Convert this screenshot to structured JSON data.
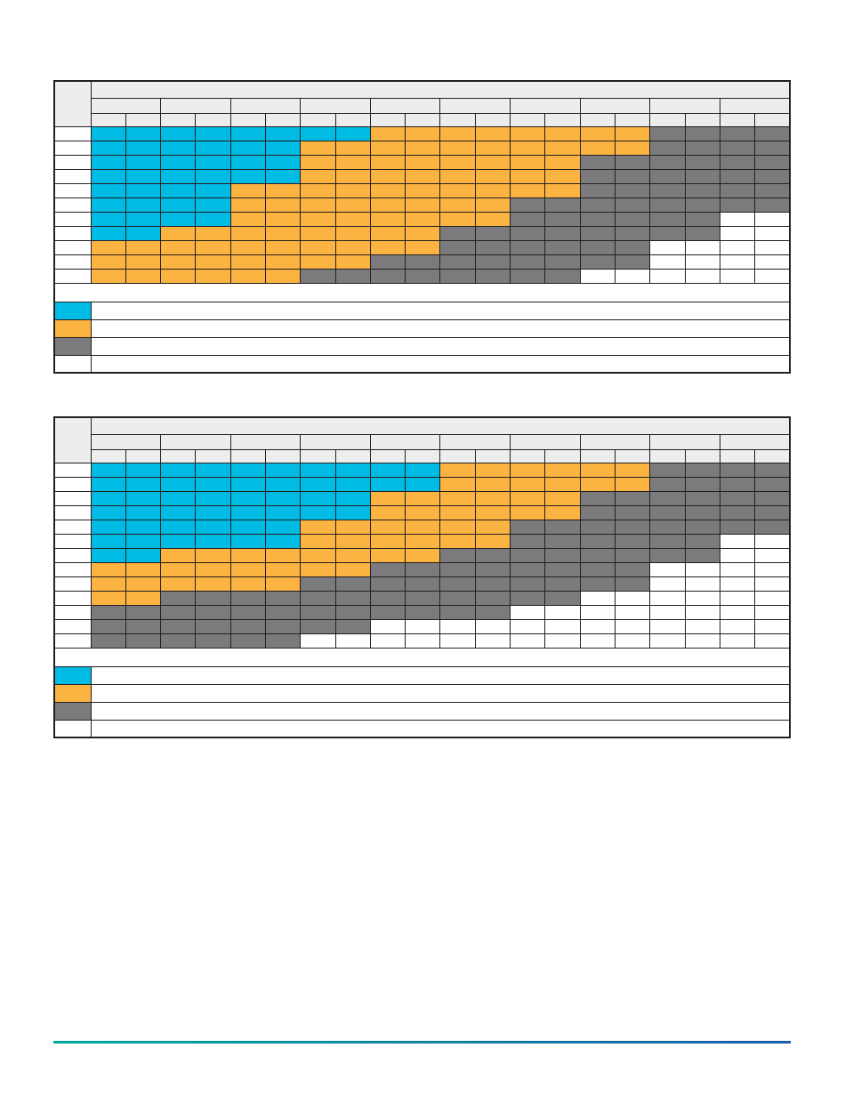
{
  "colors": {
    "cyan": "#00bce4",
    "orange": "#fbb342",
    "gray": "#7b7b7e",
    "white": "#ffffff",
    "header_fill": "#ededee",
    "border": "#231f20",
    "page_bg": "#ffffff"
  },
  "cell_key": {
    "C": "cyan",
    "O": "orange",
    "G": "gray",
    "W": "white"
  },
  "tables": [
    {
      "name": "operating-region-table-1",
      "columns": 20,
      "group_size": 2,
      "header_bands": 3,
      "rows": [
        "CCCCCCCCOOOOOOOOGGGG",
        "CCCCCCOOOOOOOOOOGGGG",
        "CCCCCCOOOOOOOOGGGGGG",
        "CCCCCCOOOOOOOOGGGGGG",
        "CCCCOOOOOOOOOOGGGGGG",
        "CCCCOOOOOOOOGGGGGGGG",
        "CCCCOOOOOOOOGGGGGGWW",
        "CCOOOOOOOOGGGGGGGGWW",
        "OOOOOOOOOOGGGGGGWWWW",
        "OOOOOOOOGGGGGGGGWWWW",
        "OOOOOOGGGGGGGGWWWWWW"
      ],
      "legend": [
        {
          "swatch": "C",
          "label": ""
        },
        {
          "swatch": "O",
          "label": ""
        },
        {
          "swatch": "G",
          "label": ""
        },
        {
          "swatch": "W",
          "label": ""
        }
      ],
      "footnote": ""
    },
    {
      "name": "operating-region-table-2",
      "columns": 20,
      "group_size": 2,
      "header_bands": 3,
      "rows": [
        "CCCCCCCCCCOOOOOOGGGG",
        "CCCCCCCCCCOOOOOOGGGG",
        "CCCCCCCCOOOOOOGGGGGG",
        "CCCCCCCCOOOOOOGGGGGG",
        "CCCCCCOOOOOOGGGGGGGG",
        "CCCCCCOOOOOOGGGGGGWW",
        "CCOOOOOOOOGGGGGGGGWW",
        "OOOOOOOOGGGGGGGGWWWW",
        "OOOOOOGGGGGGGGGGWWWW",
        "OOGGGGGGGGGGGGWWWWWW",
        "GGGGGGGGGGGGWWWWWWWW",
        "GGGGGGGGWWWWWWWWWWWW",
        "GGGGGGWWWWWWWWWWWWWW"
      ],
      "legend": [
        {
          "swatch": "C",
          "label": ""
        },
        {
          "swatch": "O",
          "label": ""
        },
        {
          "swatch": "G",
          "label": ""
        },
        {
          "swatch": "W",
          "label": ""
        }
      ],
      "footnote": ""
    }
  ],
  "divider": {
    "gradient_start": "#00a99d",
    "gradient_end": "#1b5ea9"
  }
}
